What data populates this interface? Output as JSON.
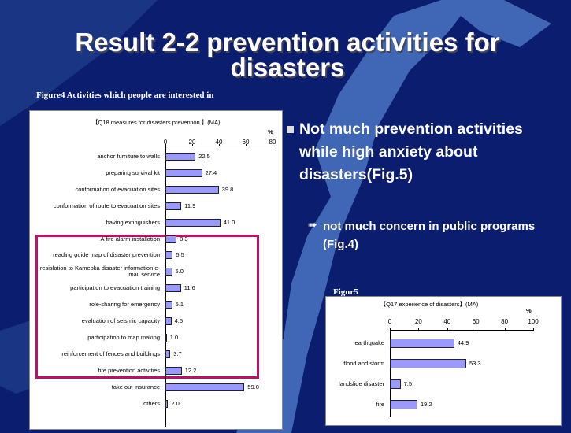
{
  "title": "Result 2-2 prevention activities for disasters",
  "bullet": {
    "text": "Not much prevention activities while high anxiety about disasters(Fig.5)",
    "sub": "not much concern in public programs (Fig.4)"
  },
  "chart_data": [
    {
      "type": "bar",
      "orientation": "horizontal",
      "figure_label": "Figure4  Activities which people are interested in",
      "title": "【Q18 measures for disasters prevention 】(MA)",
      "unit": "%",
      "categories": [
        "anchor furniture to walls",
        "preparing survival kit",
        "conformation of evacuation sites",
        "conformation of route to evacuation sites",
        "having extinguishers",
        "A fire alarm installation",
        "reading guide map of  disaster prevention",
        "resislation to Kameoka disaster information e-mail service",
        "participation to evacuation training",
        "role-sharing for emergency",
        "evaluation of seismic capacity",
        "participation to map making",
        "reinforcement of fences and buildings",
        "fire prevention activities",
        "take out insurance",
        "others"
      ],
      "values": [
        22.5,
        27.4,
        39.8,
        11.9,
        41.0,
        8.3,
        5.5,
        5.0,
        11.6,
        5.1,
        4.5,
        1.0,
        3.7,
        12.2,
        59.0,
        2.0
      ],
      "value_labels": [
        "22.5",
        "27.4",
        "39.8",
        "11.9",
        "41.0",
        "8.3",
        "5.5",
        "5.0",
        "11.6",
        "5.1",
        "4.5",
        "1.0",
        "3.7",
        "12.2",
        "59.0",
        "2.0"
      ],
      "color": "#9999ff",
      "xlim": [
        0,
        80
      ],
      "xticks": [
        0,
        20,
        40,
        60,
        80
      ]
    },
    {
      "type": "bar",
      "orientation": "horizontal",
      "figure_label": "Figur5",
      "title": "【Q17 experience of disasters】(MA)",
      "unit": "%",
      "categories": [
        "earthquake",
        "flood and storm",
        "landslide disaster",
        "fire"
      ],
      "values": [
        44.9,
        53.3,
        7.5,
        19.2
      ],
      "color": "#9999ff",
      "xlim": [
        0,
        100
      ],
      "xticks": [
        0,
        20,
        40,
        60,
        80,
        100
      ]
    }
  ]
}
